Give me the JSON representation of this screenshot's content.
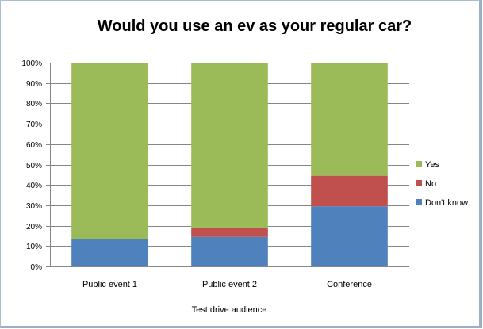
{
  "chart_data": {
    "type": "bar",
    "stacked": true,
    "title": "Would you use an ev as your regular car?",
    "xlabel": "Test drive audience",
    "ylabel": "",
    "ylim": [
      0,
      100
    ],
    "yticks": [
      "0%",
      "10%",
      "20%",
      "30%",
      "40%",
      "50%",
      "60%",
      "70%",
      "80%",
      "90%",
      "100%"
    ],
    "grid": true,
    "legend_position": "right",
    "categories": [
      "Public event 1",
      "Public event 2",
      "Conference"
    ],
    "series": [
      {
        "name": "Don't know",
        "color": "#4f81bd",
        "values": [
          13.5,
          14.5,
          29.5
        ]
      },
      {
        "name": "No",
        "color": "#c0504d",
        "values": [
          0,
          4.5,
          15
        ]
      },
      {
        "name": "Yes",
        "color": "#9bbb59",
        "values": [
          86.5,
          81,
          55.5
        ]
      }
    ],
    "legend_order": [
      "Yes",
      "No",
      "Don't know"
    ]
  }
}
